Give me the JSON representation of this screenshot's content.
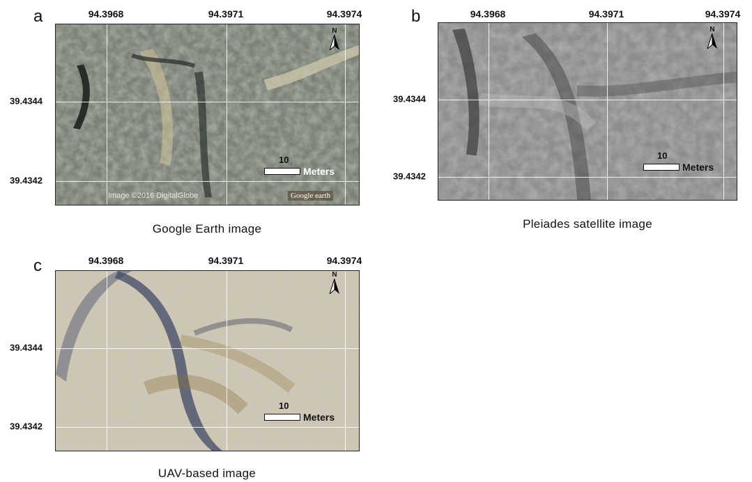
{
  "panels": [
    {
      "id": "a",
      "label": "a",
      "caption": "Google Earth image",
      "lon_labels": [
        "94.3968",
        "94.3971",
        "94.3974"
      ],
      "lat_labels": [
        "39.4344",
        "39.4342"
      ],
      "scale": {
        "value": "10",
        "unit": "Meters"
      },
      "north": "N",
      "credit": "Image ©2016 DigitalGlobe",
      "logo": "Google earth",
      "tone": "#7e8377"
    },
    {
      "id": "b",
      "label": "b",
      "caption": "Pleiades satellite image",
      "lon_labels": [
        "94.3968",
        "94.3971",
        "94.3974"
      ],
      "lat_labels": [
        "39.4344",
        "39.4342"
      ],
      "scale": {
        "value": "10",
        "unit": "Meters"
      },
      "north": "N",
      "tone": "#8a8a8a"
    },
    {
      "id": "c",
      "label": "c",
      "caption": "UAV-based image",
      "lon_labels": [
        "94.3968",
        "94.3971",
        "94.3974"
      ],
      "lat_labels": [
        "39.4344",
        "39.4342"
      ],
      "scale": {
        "value": "10",
        "unit": "Meters"
      },
      "north": "N",
      "tone": "#c7c0b0"
    }
  ]
}
